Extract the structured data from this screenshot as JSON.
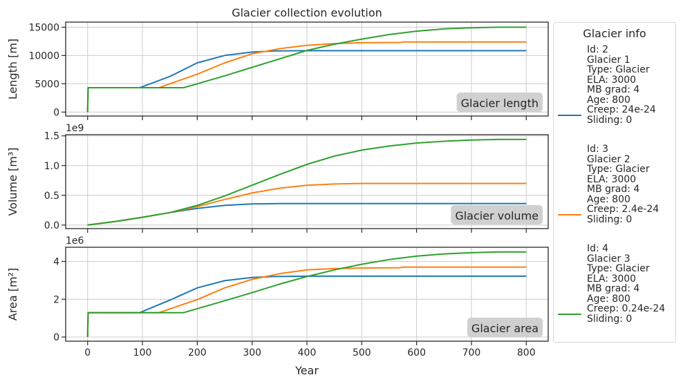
{
  "chart_data": {
    "type": "line",
    "title": "Glacier collection evolution",
    "xlabel": "Year",
    "x_ticks": [
      "0",
      "100",
      "200",
      "300",
      "400",
      "500",
      "600",
      "700",
      "800"
    ],
    "xlim": [
      -40,
      840
    ],
    "colors": [
      "#1f77b4",
      "#ff7f0e",
      "#2ca02c"
    ],
    "legend": {
      "title": "Glacier info",
      "entries": [
        {
          "text": "Id: 2\nGlacier 1\nType: Glacier\nELA: 3000\nMB grad: 4\nAge: 800\nCreep: 24e-24\nSliding: 0"
        },
        {
          "text": "Id: 3\nGlacier 2\nType: Glacier\nELA: 3000\nMB grad: 4\nAge: 800\nCreep: 2.4e-24\nSliding: 0"
        },
        {
          "text": "Id: 4\nGlacier 3\nType: Glacier\nELA: 3000\nMB grad: 4\nAge: 800\nCreep: 0.24e-24\nSliding: 0"
        }
      ]
    },
    "panels": [
      {
        "ylabel": "Length [m]",
        "ylim": [
          -700,
          15900
        ],
        "y_ticks": [
          0,
          5000,
          10000,
          15000
        ],
        "y_tick_labels": [
          "0",
          "5000",
          "10000",
          "15000"
        ],
        "multiplier": "",
        "annotation": "Glacier length",
        "series": [
          {
            "name": "Glacier 1",
            "x": [
              0,
              1,
              2,
              5,
              95,
              150,
              200,
              250,
              300,
              340,
              400,
              500,
              600,
              700,
              800
            ],
            "y": [
              0,
              4300,
              4300,
              4300,
              4300,
              6300,
              8700,
              10000,
              10600,
              10800,
              10850,
              10850,
              10850,
              10850,
              10850
            ]
          },
          {
            "name": "Glacier 2",
            "x": [
              0,
              1,
              2,
              5,
              130,
              200,
              250,
              300,
              350,
              400,
              450,
              500,
              570,
              575,
              700,
              800
            ],
            "y": [
              0,
              4300,
              4300,
              4300,
              4300,
              6700,
              8700,
              10300,
              11200,
              11800,
              12100,
              12250,
              12300,
              12400,
              12400,
              12400
            ]
          },
          {
            "name": "Glacier 3",
            "x": [
              0,
              1,
              2,
              5,
              175,
              200,
              250,
              300,
              350,
              400,
              450,
              500,
              550,
              600,
              650,
              700,
              750,
              800
            ],
            "y": [
              0,
              4300,
              4300,
              4300,
              4300,
              5000,
              6400,
              7900,
              9400,
              10900,
              12000,
              12900,
              13700,
              14300,
              14700,
              14900,
              15000,
              15000
            ]
          }
        ]
      },
      {
        "ylabel": "Volume [m³]",
        "ylim": [
          -0.06,
          1.52
        ],
        "y_ticks": [
          0,
          0.5,
          1.0,
          1.5
        ],
        "y_tick_labels": [
          "0.0",
          "0.5",
          "1.0",
          "1.5"
        ],
        "multiplier": "1e9",
        "annotation": "Glacier volume",
        "series": [
          {
            "name": "Glacier 1",
            "x": [
              0,
              50,
              100,
              150,
              200,
              250,
              300,
              350,
              400,
              500,
              600,
              700,
              800
            ],
            "y": [
              0,
              0.06,
              0.13,
              0.21,
              0.28,
              0.33,
              0.355,
              0.36,
              0.362,
              0.362,
              0.362,
              0.362,
              0.362
            ]
          },
          {
            "name": "Glacier 2",
            "x": [
              0,
              50,
              100,
              150,
              200,
              250,
              300,
              350,
              400,
              450,
              500,
              600,
              700,
              800
            ],
            "y": [
              0,
              0.06,
              0.13,
              0.21,
              0.31,
              0.43,
              0.54,
              0.62,
              0.67,
              0.69,
              0.7,
              0.7,
              0.7,
              0.7
            ]
          },
          {
            "name": "Glacier 3",
            "x": [
              0,
              50,
              100,
              150,
              200,
              250,
              300,
              350,
              400,
              450,
              500,
              550,
              600,
              650,
              700,
              750,
              800
            ],
            "y": [
              0,
              0.06,
              0.13,
              0.21,
              0.33,
              0.49,
              0.67,
              0.85,
              1.02,
              1.16,
              1.26,
              1.33,
              1.38,
              1.41,
              1.43,
              1.44,
              1.44
            ]
          }
        ]
      },
      {
        "ylabel": "Area [m²]",
        "ylim": [
          -0.22,
          4.75
        ],
        "y_ticks": [
          0,
          2,
          4
        ],
        "y_tick_labels": [
          "0",
          "2",
          "4"
        ],
        "multiplier": "1e6",
        "annotation": "Glacier area",
        "series": [
          {
            "name": "Glacier 1",
            "x": [
              0,
              1,
              2,
              5,
              95,
              150,
              200,
              250,
              300,
              340,
              400,
              500,
              600,
              700,
              800
            ],
            "y": [
              0,
              1.29,
              1.29,
              1.29,
              1.29,
              1.95,
              2.6,
              2.98,
              3.15,
              3.2,
              3.22,
              3.22,
              3.22,
              3.22,
              3.22
            ]
          },
          {
            "name": "Glacier 2",
            "x": [
              0,
              1,
              2,
              5,
              130,
              200,
              250,
              300,
              350,
              400,
              450,
              500,
              570,
              575,
              700,
              800
            ],
            "y": [
              0,
              1.29,
              1.29,
              1.29,
              1.29,
              1.98,
              2.6,
              3.05,
              3.35,
              3.55,
              3.62,
              3.65,
              3.67,
              3.7,
              3.7,
              3.7
            ]
          },
          {
            "name": "Glacier 3",
            "x": [
              0,
              1,
              2,
              5,
              175,
              200,
              250,
              300,
              350,
              400,
              450,
              500,
              550,
              600,
              650,
              700,
              750,
              800
            ],
            "y": [
              0,
              1.29,
              1.29,
              1.29,
              1.29,
              1.5,
              1.92,
              2.35,
              2.8,
              3.2,
              3.55,
              3.85,
              4.1,
              4.28,
              4.4,
              4.46,
              4.5,
              4.5
            ]
          }
        ]
      }
    ]
  }
}
